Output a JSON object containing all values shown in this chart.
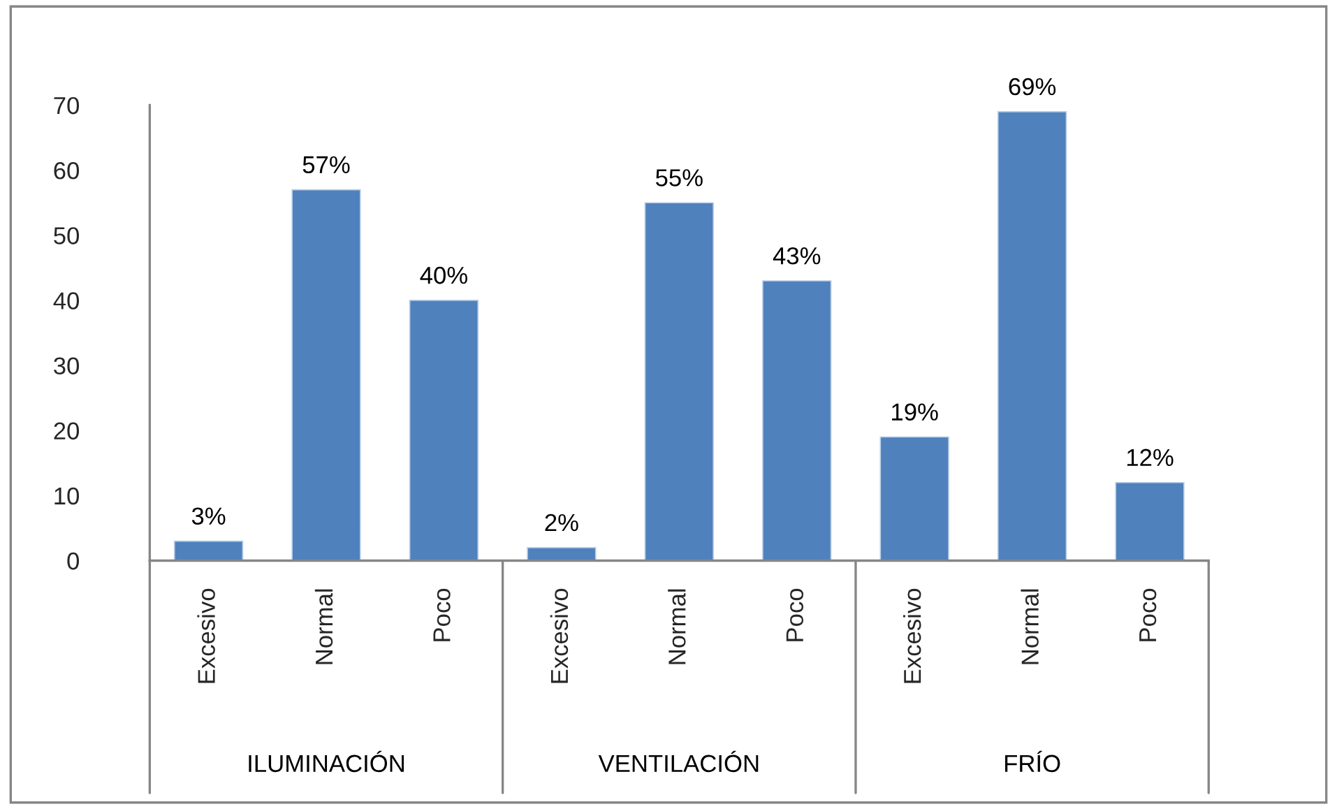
{
  "chart_data": {
    "type": "bar",
    "categories": [
      "Excesivo",
      "Normal",
      "Poco",
      "Excesivo",
      "Normal",
      "Poco",
      "Excesivo",
      "Normal",
      "Poco"
    ],
    "values": [
      3,
      57,
      40,
      2,
      55,
      43,
      19,
      69,
      12
    ],
    "value_labels": [
      "3%",
      "57%",
      "40%",
      "2%",
      "55%",
      "43%",
      "19%",
      "69%",
      "12%"
    ],
    "color": "#4f81bd",
    "ylim": [
      0,
      70
    ],
    "yticks": [
      0,
      10,
      20,
      30,
      40,
      50,
      60,
      70
    ],
    "annotations": [
      "ILUMINACIÓN",
      "VENTILACIÓN",
      "FRÍO"
    ]
  }
}
